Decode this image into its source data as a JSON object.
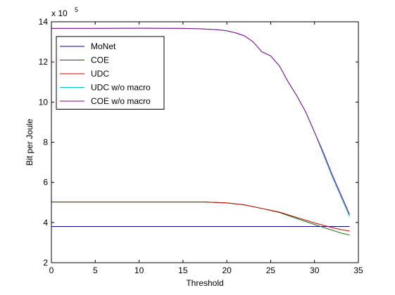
{
  "chart_data": {
    "type": "line",
    "title": "",
    "xlabel": "Threshold",
    "ylabel": "Bit per Joule",
    "y_exponent": {
      "base": "x 10",
      "power": "5"
    },
    "xlim": [
      0,
      35
    ],
    "ylim": [
      2,
      14
    ],
    "xticks": [
      "0",
      "5",
      "10",
      "15",
      "20",
      "25",
      "30",
      "35"
    ],
    "yticks": [
      "2",
      "4",
      "6",
      "8",
      "10",
      "12",
      "14"
    ],
    "grid": false,
    "legend_position": "top-left",
    "series": [
      {
        "name": "MoNet",
        "color": "#00008b",
        "x": [
          0,
          5,
          10,
          15,
          20,
          25,
          30,
          34
        ],
        "y": [
          3.8,
          3.8,
          3.8,
          3.8,
          3.8,
          3.8,
          3.8,
          3.8
        ]
      },
      {
        "name": "COE",
        "color": "#006400",
        "x": [
          0,
          5,
          10,
          15,
          17.5,
          20,
          22,
          24,
          26,
          28,
          30,
          32,
          33,
          34
        ],
        "y": [
          5.02,
          5.02,
          5.02,
          5.02,
          5.02,
          4.98,
          4.88,
          4.7,
          4.5,
          4.2,
          3.9,
          3.62,
          3.48,
          3.38
        ]
      },
      {
        "name": "UDC",
        "color": "#cc0000",
        "x": [
          0,
          5,
          10,
          15,
          17.5,
          20,
          22,
          24,
          26,
          28,
          30,
          32,
          33,
          34
        ],
        "y": [
          5.02,
          5.02,
          5.02,
          5.02,
          5.02,
          4.98,
          4.88,
          4.7,
          4.52,
          4.25,
          3.98,
          3.75,
          3.65,
          3.58
        ]
      },
      {
        "name": "UDC w/o macro",
        "color": "#00bfbf",
        "x": [
          0,
          5,
          10,
          15,
          17,
          19,
          20,
          21,
          22,
          23,
          24,
          25,
          26,
          27,
          28,
          29,
          30,
          31,
          32,
          33,
          34
        ],
        "y": [
          13.67,
          13.67,
          13.68,
          13.67,
          13.65,
          13.6,
          13.55,
          13.45,
          13.3,
          13.0,
          12.5,
          12.3,
          11.8,
          11.0,
          10.3,
          9.5,
          8.5,
          7.4,
          6.3,
          5.3,
          4.3
        ]
      },
      {
        "name": "COE w/o macro",
        "color": "#8b008b",
        "x": [
          0,
          5,
          10,
          15,
          17,
          19,
          20,
          21,
          22,
          23,
          24,
          25,
          26,
          27,
          28,
          29,
          30,
          31,
          32,
          33,
          34
        ],
        "y": [
          13.67,
          13.67,
          13.68,
          13.67,
          13.65,
          13.6,
          13.55,
          13.45,
          13.3,
          13.0,
          12.5,
          12.3,
          11.8,
          11.0,
          10.3,
          9.5,
          8.5,
          7.5,
          6.4,
          5.4,
          4.4
        ]
      }
    ]
  }
}
